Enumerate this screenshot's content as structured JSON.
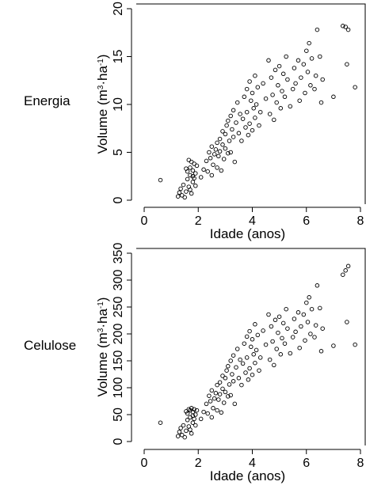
{
  "chart_data": [
    {
      "type": "scatter",
      "row_label": "Energia",
      "xlabel": "Idade (anos)",
      "ylabel": {
        "prefix": "Volume (m",
        "sup1": "3",
        "middle": "·ha",
        "sup2": "-1",
        "suffix": ")"
      },
      "xlim": [
        0,
        8
      ],
      "ylim": [
        0,
        20
      ],
      "xticks": [
        0,
        2,
        4,
        6,
        8
      ],
      "yticks": [
        0,
        5,
        10,
        15,
        20
      ],
      "marker": "open-circle",
      "grid": false,
      "points": [
        [
          0.6,
          2.1
        ],
        [
          1.25,
          0.4
        ],
        [
          1.3,
          0.8
        ],
        [
          1.35,
          1.2
        ],
        [
          1.4,
          0.5
        ],
        [
          1.45,
          1.6
        ],
        [
          1.5,
          0.3
        ],
        [
          1.55,
          0.9
        ],
        [
          1.6,
          2.2
        ],
        [
          1.6,
          3.0
        ],
        [
          1.65,
          1.4
        ],
        [
          1.7,
          2.6
        ],
        [
          1.7,
          3.4
        ],
        [
          1.75,
          0.7
        ],
        [
          1.75,
          4.0
        ],
        [
          1.8,
          1.9
        ],
        [
          1.8,
          3.1
        ],
        [
          1.85,
          2.3
        ],
        [
          1.85,
          3.8
        ],
        [
          1.9,
          2.8
        ],
        [
          1.55,
          3.3
        ],
        [
          1.65,
          4.2
        ],
        [
          1.7,
          1.1
        ],
        [
          1.8,
          2.5
        ],
        [
          1.9,
          1.5
        ],
        [
          1.95,
          3.6
        ],
        [
          2.1,
          2.4
        ],
        [
          2.2,
          3.2
        ],
        [
          2.3,
          4.1
        ],
        [
          2.35,
          3.0
        ],
        [
          2.4,
          5.0
        ],
        [
          2.45,
          4.4
        ],
        [
          2.5,
          2.6
        ],
        [
          2.5,
          5.6
        ],
        [
          2.55,
          3.7
        ],
        [
          2.6,
          4.8
        ],
        [
          2.65,
          5.3
        ],
        [
          2.7,
          6.0
        ],
        [
          2.7,
          3.4
        ],
        [
          2.75,
          4.6
        ],
        [
          2.8,
          6.4
        ],
        [
          2.8,
          5.1
        ],
        [
          2.85,
          3.1
        ],
        [
          2.9,
          7.2
        ],
        [
          2.9,
          5.8
        ],
        [
          2.95,
          4.3
        ],
        [
          3.0,
          6.9
        ],
        [
          3.0,
          5.4
        ],
        [
          3.05,
          7.8
        ],
        [
          3.1,
          4.9
        ],
        [
          3.1,
          8.3
        ],
        [
          3.15,
          6.2
        ],
        [
          3.2,
          8.8
        ],
        [
          3.2,
          5.0
        ],
        [
          3.25,
          7.4
        ],
        [
          3.3,
          9.4
        ],
        [
          3.3,
          6.6
        ],
        [
          3.35,
          4.0
        ],
        [
          3.4,
          8.1
        ],
        [
          3.45,
          10.2
        ],
        [
          3.5,
          7.0
        ],
        [
          3.55,
          9.0
        ],
        [
          3.6,
          6.2
        ],
        [
          3.65,
          8.5
        ],
        [
          3.7,
          10.8
        ],
        [
          3.75,
          7.6
        ],
        [
          3.8,
          11.6
        ],
        [
          3.8,
          9.2
        ],
        [
          3.85,
          6.8
        ],
        [
          3.9,
          12.4
        ],
        [
          3.9,
          8.0
        ],
        [
          3.95,
          10.4
        ],
        [
          4.0,
          7.3
        ],
        [
          4.0,
          11.2
        ],
        [
          4.05,
          9.6
        ],
        [
          4.1,
          13.0
        ],
        [
          4.1,
          8.6
        ],
        [
          4.15,
          10.0
        ],
        [
          4.2,
          11.8
        ],
        [
          4.25,
          7.8
        ],
        [
          4.3,
          9.2
        ],
        [
          4.4,
          12.2
        ],
        [
          4.5,
          10.6
        ],
        [
          4.6,
          14.6
        ],
        [
          4.65,
          9.0
        ],
        [
          4.7,
          12.8
        ],
        [
          4.75,
          11.0
        ],
        [
          4.8,
          8.4
        ],
        [
          4.85,
          13.6
        ],
        [
          4.9,
          10.2
        ],
        [
          4.95,
          12.0
        ],
        [
          5.0,
          14.0
        ],
        [
          5.05,
          9.6
        ],
        [
          5.1,
          11.4
        ],
        [
          5.15,
          13.2
        ],
        [
          5.2,
          10.8
        ],
        [
          5.25,
          15.0
        ],
        [
          5.3,
          12.6
        ],
        [
          5.4,
          9.8
        ],
        [
          5.5,
          11.6
        ],
        [
          5.55,
          13.8
        ],
        [
          5.6,
          12.2
        ],
        [
          5.7,
          14.6
        ],
        [
          5.75,
          10.4
        ],
        [
          5.8,
          12.8
        ],
        [
          5.9,
          14.2
        ],
        [
          5.95,
          11.2
        ],
        [
          6.0,
          15.6
        ],
        [
          6.05,
          13.4
        ],
        [
          6.1,
          16.4
        ],
        [
          6.15,
          12.0
        ],
        [
          6.2,
          14.8
        ],
        [
          6.3,
          11.6
        ],
        [
          6.35,
          13.0
        ],
        [
          6.4,
          17.8
        ],
        [
          6.5,
          15.0
        ],
        [
          6.55,
          10.2
        ],
        [
          6.6,
          12.6
        ],
        [
          7.0,
          10.8
        ],
        [
          7.35,
          18.2
        ],
        [
          7.45,
          18.1
        ],
        [
          7.55,
          17.8
        ],
        [
          7.5,
          14.2
        ],
        [
          7.8,
          11.8
        ]
      ]
    },
    {
      "type": "scatter",
      "row_label": "Celulose",
      "xlabel": "Idade (anos)",
      "ylabel": {
        "prefix": "Volume (m",
        "sup1": "3",
        "middle": "·ha",
        "sup2": "-1",
        "suffix": ")"
      },
      "xlim": [
        0,
        8
      ],
      "ylim": [
        0,
        350
      ],
      "xticks": [
        0,
        2,
        4,
        6,
        8
      ],
      "yticks": [
        0,
        50,
        100,
        150,
        200,
        250,
        300,
        350
      ],
      "marker": "open-circle",
      "grid": false,
      "points": [
        [
          0.6,
          35
        ],
        [
          1.25,
          10
        ],
        [
          1.3,
          18
        ],
        [
          1.35,
          25
        ],
        [
          1.4,
          12
        ],
        [
          1.45,
          30
        ],
        [
          1.5,
          8
        ],
        [
          1.55,
          20
        ],
        [
          1.6,
          40
        ],
        [
          1.6,
          52
        ],
        [
          1.65,
          28
        ],
        [
          1.7,
          45
        ],
        [
          1.7,
          58
        ],
        [
          1.75,
          15
        ],
        [
          1.75,
          62
        ],
        [
          1.8,
          35
        ],
        [
          1.8,
          55
        ],
        [
          1.85,
          42
        ],
        [
          1.85,
          60
        ],
        [
          1.9,
          50
        ],
        [
          1.55,
          56
        ],
        [
          1.65,
          60
        ],
        [
          1.7,
          22
        ],
        [
          1.8,
          48
        ],
        [
          1.9,
          30
        ],
        [
          1.95,
          58
        ],
        [
          2.1,
          42
        ],
        [
          2.2,
          55
        ],
        [
          2.3,
          70
        ],
        [
          2.35,
          52
        ],
        [
          2.4,
          85
        ],
        [
          2.45,
          75
        ],
        [
          2.5,
          45
        ],
        [
          2.5,
          95
        ],
        [
          2.55,
          62
        ],
        [
          2.6,
          80
        ],
        [
          2.65,
          90
        ],
        [
          2.7,
          105
        ],
        [
          2.7,
          58
        ],
        [
          2.75,
          78
        ],
        [
          2.8,
          110
        ],
        [
          2.8,
          88
        ],
        [
          2.85,
          54
        ],
        [
          2.9,
          122
        ],
        [
          2.9,
          98
        ],
        [
          2.95,
          72
        ],
        [
          3.0,
          118
        ],
        [
          3.0,
          92
        ],
        [
          3.05,
          132
        ],
        [
          3.1,
          84
        ],
        [
          3.1,
          140
        ],
        [
          3.15,
          106
        ],
        [
          3.2,
          150
        ],
        [
          3.2,
          86
        ],
        [
          3.25,
          125
        ],
        [
          3.3,
          160
        ],
        [
          3.3,
          112
        ],
        [
          3.35,
          70
        ],
        [
          3.4,
          138
        ],
        [
          3.45,
          172
        ],
        [
          3.5,
          118
        ],
        [
          3.55,
          152
        ],
        [
          3.6,
          105
        ],
        [
          3.65,
          145
        ],
        [
          3.7,
          182
        ],
        [
          3.75,
          128
        ],
        [
          3.8,
          195
        ],
        [
          3.8,
          156
        ],
        [
          3.85,
          115
        ],
        [
          3.9,
          205
        ],
        [
          3.9,
          136
        ],
        [
          3.95,
          176
        ],
        [
          4.0,
          124
        ],
        [
          4.0,
          190
        ],
        [
          4.05,
          162
        ],
        [
          4.1,
          218
        ],
        [
          4.1,
          146
        ],
        [
          4.15,
          170
        ],
        [
          4.2,
          198
        ],
        [
          4.25,
          132
        ],
        [
          4.3,
          156
        ],
        [
          4.4,
          206
        ],
        [
          4.5,
          180
        ],
        [
          4.6,
          236
        ],
        [
          4.65,
          152
        ],
        [
          4.7,
          214
        ],
        [
          4.75,
          186
        ],
        [
          4.8,
          142
        ],
        [
          4.85,
          226
        ],
        [
          4.9,
          172
        ],
        [
          4.95,
          202
        ],
        [
          5.0,
          232
        ],
        [
          5.05,
          162
        ],
        [
          5.1,
          192
        ],
        [
          5.15,
          220
        ],
        [
          5.2,
          182
        ],
        [
          5.25,
          246
        ],
        [
          5.3,
          210
        ],
        [
          5.4,
          164
        ],
        [
          5.5,
          194
        ],
        [
          5.55,
          228
        ],
        [
          5.6,
          204
        ],
        [
          5.7,
          240
        ],
        [
          5.75,
          174
        ],
        [
          5.8,
          214
        ],
        [
          5.9,
          236
        ],
        [
          5.95,
          188
        ],
        [
          6.0,
          258
        ],
        [
          6.05,
          222
        ],
        [
          6.1,
          268
        ],
        [
          6.15,
          200
        ],
        [
          6.2,
          246
        ],
        [
          6.3,
          194
        ],
        [
          6.35,
          216
        ],
        [
          6.4,
          290
        ],
        [
          6.5,
          248
        ],
        [
          6.55,
          168
        ],
        [
          6.6,
          210
        ],
        [
          7.0,
          178
        ],
        [
          7.35,
          310
        ],
        [
          7.45,
          318
        ],
        [
          7.55,
          326
        ],
        [
          7.5,
          222
        ],
        [
          7.8,
          180
        ]
      ]
    }
  ]
}
